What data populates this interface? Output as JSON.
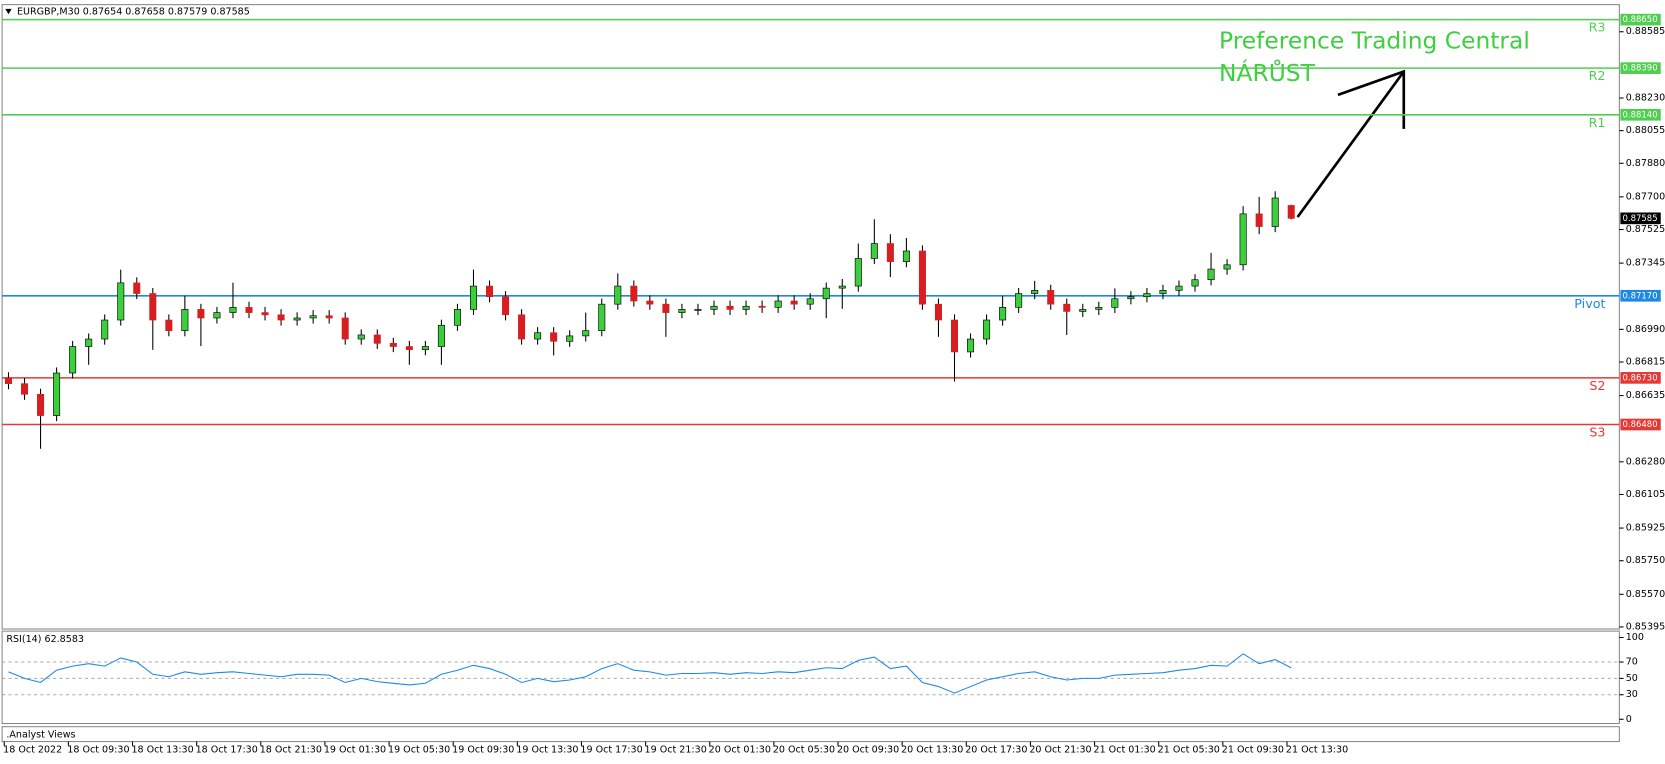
{
  "chart_data": [
    {
      "type": "candlestick",
      "title": "EURGBP,M30  0.87654 0.87658 0.87579 0.87585",
      "categories": [
        "18 Oct 2022",
        null,
        null,
        null,
        "18 Oct 09:30",
        null,
        null,
        null,
        "18 Oct 13:30",
        null,
        null,
        null,
        "18 Oct 17:30",
        null,
        null,
        null,
        "18 Oct 21:30",
        null,
        null,
        null,
        "19 Oct 01:30",
        null,
        null,
        null,
        "19 Oct 05:30",
        null,
        null,
        null,
        "19 Oct 09:30",
        null,
        null,
        null,
        "19 Oct 13:30",
        null,
        null,
        null,
        "19 Oct 17:30",
        null,
        null,
        null,
        "19 Oct 21:30",
        null,
        null,
        null,
        "20 Oct 01:30",
        null,
        null,
        null,
        "20 Oct 05:30",
        null,
        null,
        null,
        "20 Oct 09:30",
        null,
        null,
        null,
        "20 Oct 13:30",
        null,
        null,
        null,
        "20 Oct 17:30",
        null,
        null,
        null,
        "20 Oct 21:30",
        null,
        null,
        null,
        "21 Oct 01:30",
        null,
        null,
        null,
        "21 Oct 05:30",
        null,
        null,
        null,
        "21 Oct 09:30",
        null,
        null,
        null,
        "21 Oct 13:30"
      ],
      "open": [
        0.8673,
        0.86699,
        0.86642,
        0.86528,
        0.86756,
        0.86898,
        0.86938,
        0.8704,
        0.87239,
        0.87182,
        0.8704,
        0.86983,
        0.87097,
        0.87051,
        0.8708,
        0.87108,
        0.8708,
        0.87068,
        0.8704,
        0.87051,
        0.87063,
        0.87051,
        0.86938,
        0.8696,
        0.86915,
        0.86898,
        0.86881,
        0.86898,
        0.87012,
        0.87097,
        0.87222,
        0.87165,
        0.87068,
        0.86938,
        0.86972,
        0.86926,
        0.86955,
        0.86983,
        0.87125,
        0.87222,
        0.87142,
        0.87125,
        0.8708,
        0.87097,
        0.87097,
        0.87114,
        0.87097,
        0.87114,
        0.87108,
        0.87142,
        0.87125,
        0.87154,
        0.87211,
        0.87222,
        0.8737,
        0.8745,
        0.87353,
        0.8741,
        0.87125,
        0.8704,
        0.86869,
        0.86938,
        0.8704,
        0.87108,
        0.87182,
        0.87199,
        0.87125,
        0.87086,
        0.87097,
        0.87108,
        0.87154,
        0.87165,
        0.87182,
        0.87199,
        0.87222,
        0.87256,
        0.87313,
        0.87336,
        0.87609,
        0.87541,
        0.87654
      ],
      "high": [
        0.8676,
        0.86729,
        0.86672,
        0.86786,
        0.86928,
        0.86968,
        0.8707,
        0.8731,
        0.87269,
        0.87212,
        0.8707,
        0.8717,
        0.87127,
        0.8711,
        0.8724,
        0.87138,
        0.8711,
        0.87098,
        0.87081,
        0.87093,
        0.87093,
        0.87081,
        0.8699,
        0.8699,
        0.86945,
        0.86928,
        0.86928,
        0.87042,
        0.87127,
        0.8731,
        0.87252,
        0.87195,
        0.87098,
        0.87002,
        0.87002,
        0.86985,
        0.8708,
        0.87155,
        0.8729,
        0.87252,
        0.87172,
        0.87155,
        0.87127,
        0.87127,
        0.87144,
        0.87144,
        0.87144,
        0.87144,
        0.87172,
        0.87172,
        0.87184,
        0.87241,
        0.8726,
        0.8745,
        0.8758,
        0.875,
        0.8748,
        0.8744,
        0.87155,
        0.8707,
        0.86968,
        0.8707,
        0.8717,
        0.87212,
        0.8725,
        0.87229,
        0.87155,
        0.87127,
        0.87138,
        0.8721,
        0.87195,
        0.87212,
        0.87229,
        0.87252,
        0.87286,
        0.874,
        0.87366,
        0.8765,
        0.877,
        0.8773,
        0.87658
      ],
      "low": [
        0.86669,
        0.86612,
        0.8635,
        0.86498,
        0.86726,
        0.868,
        0.86908,
        0.8701,
        0.87152,
        0.8688,
        0.86953,
        0.86953,
        0.869,
        0.87021,
        0.8705,
        0.8705,
        0.87038,
        0.8701,
        0.8701,
        0.87021,
        0.87021,
        0.86908,
        0.86908,
        0.86885,
        0.86868,
        0.868,
        0.86851,
        0.868,
        0.86982,
        0.87067,
        0.87135,
        0.87038,
        0.86908,
        0.86908,
        0.8685,
        0.86896,
        0.86925,
        0.86953,
        0.87095,
        0.87112,
        0.87095,
        0.8695,
        0.8705,
        0.87067,
        0.87067,
        0.87067,
        0.87067,
        0.87078,
        0.87078,
        0.87095,
        0.87095,
        0.8705,
        0.871,
        0.87192,
        0.8734,
        0.8727,
        0.87323,
        0.87095,
        0.8695,
        0.8671,
        0.86839,
        0.86908,
        0.8701,
        0.87078,
        0.87152,
        0.87095,
        0.8696,
        0.87056,
        0.87067,
        0.87078,
        0.87124,
        0.87135,
        0.87152,
        0.87169,
        0.87192,
        0.87226,
        0.87283,
        0.87306,
        0.875,
        0.87511,
        0.87579
      ],
      "close": [
        0.86699,
        0.86642,
        0.86528,
        0.86756,
        0.86898,
        0.86938,
        0.8704,
        0.87239,
        0.87182,
        0.8704,
        0.86983,
        0.87097,
        0.87051,
        0.8708,
        0.87108,
        0.8708,
        0.87068,
        0.8704,
        0.87051,
        0.87063,
        0.87051,
        0.86938,
        0.8696,
        0.86915,
        0.86898,
        0.86881,
        0.86898,
        0.87012,
        0.87097,
        0.87222,
        0.87165,
        0.87068,
        0.86938,
        0.86972,
        0.86926,
        0.86955,
        0.86983,
        0.87125,
        0.87222,
        0.87142,
        0.87125,
        0.8708,
        0.87097,
        0.87097,
        0.87114,
        0.87097,
        0.87114,
        0.87108,
        0.87142,
        0.87125,
        0.87154,
        0.87211,
        0.87222,
        0.8737,
        0.8745,
        0.87353,
        0.8741,
        0.87125,
        0.8704,
        0.86869,
        0.86938,
        0.8704,
        0.87108,
        0.87182,
        0.87199,
        0.87125,
        0.87086,
        0.87097,
        0.87108,
        0.87154,
        0.87165,
        0.87182,
        0.87199,
        0.87222,
        0.87256,
        0.87313,
        0.87336,
        0.87609,
        0.87541,
        0.87694,
        0.87585
      ],
      "up_color": "#3ccf3c",
      "down_color": "#d81e1e",
      "last_price_label": "0.87585",
      "ylim": [
        0.85384,
        0.88719
      ],
      "yticks": [
        0.88585,
        {
          "value": 0.8823,
          "label": "0.88230"
        },
        0.88055,
        {
          "value": 0.8788,
          "label": "0.87880"
        },
        {
          "value": 0.877,
          "label": "0.87700"
        },
        0.87525,
        0.87345,
        {
          "value": 0.8699,
          "label": "0.86990"
        },
        0.86815,
        0.86635,
        {
          "value": 0.8628,
          "label": "0.86280"
        },
        0.86105,
        0.85925,
        {
          "value": 0.8575,
          "label": "0.85750"
        },
        {
          "value": 0.8557,
          "label": "0.85570"
        },
        0.85395
      ],
      "levels": {
        "names": [
          "R3",
          "R2",
          "R1",
          "Pivot",
          "S2",
          "S3"
        ],
        "values": [
          0.8865,
          0.8839,
          0.8814,
          0.8717,
          0.8673,
          0.8648
        ],
        "value_labels": [
          "0.88650",
          "0.88390",
          "0.88140",
          "0.87170",
          "0.86730",
          "0.86480"
        ],
        "colors": [
          "#4fcf4f",
          "#4fcf4f",
          "#4fcf4f",
          "#1e88e5",
          "#e53935",
          "#e53935"
        ]
      },
      "annotations": [
        "Preference Trading Central",
        "NÁRŮST"
      ],
      "annotation_color": "#3fcf3f"
    },
    {
      "type": "line",
      "title": "RSI(14) 62.8583",
      "color": "#1e88e5",
      "values": [
        58,
        50,
        45,
        60,
        65,
        68,
        65,
        75,
        70,
        55,
        52,
        58,
        55,
        57,
        58,
        56,
        54,
        52,
        55,
        55,
        54,
        45,
        50,
        46,
        44,
        42,
        44,
        55,
        60,
        66,
        62,
        55,
        45,
        50,
        46,
        48,
        52,
        62,
        68,
        60,
        58,
        54,
        56,
        56,
        57,
        55,
        57,
        56,
        58,
        57,
        60,
        63,
        62,
        72,
        76,
        62,
        65,
        45,
        40,
        32,
        40,
        48,
        52,
        56,
        58,
        52,
        48,
        50,
        50,
        54,
        55,
        56,
        57,
        60,
        62,
        66,
        65,
        80,
        68,
        73,
        62.8583
      ],
      "ylim": [
        0,
        100
      ],
      "yticks": [
        100,
        70,
        50,
        30,
        0
      ]
    }
  ],
  "bottom_panel": ".Analyst Views"
}
